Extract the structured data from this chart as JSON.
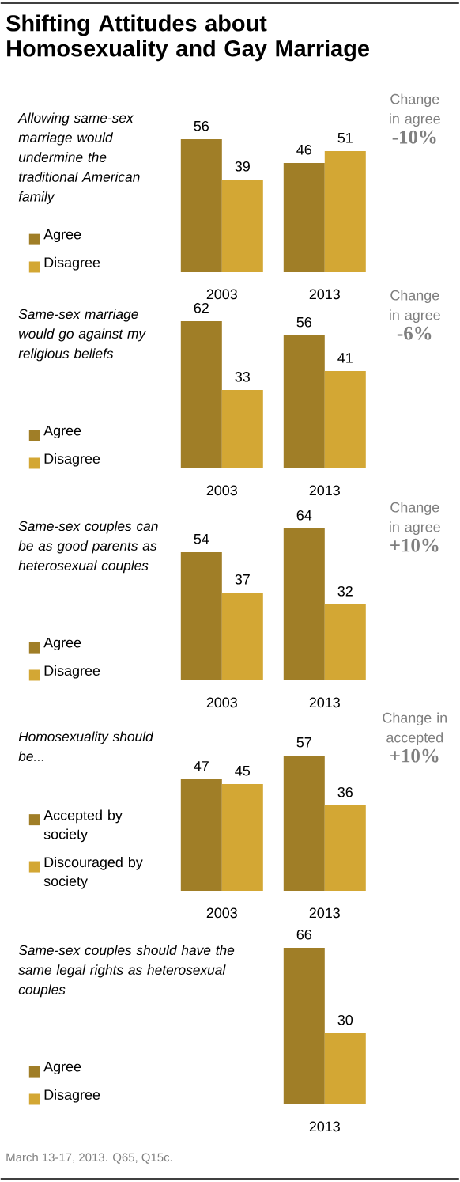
{
  "chart_data": [
    {
      "type": "bar",
      "title": "Shifting Attitudes about Homosexuality and Gay Marriage",
      "subtitle": "Allowing same-sex marriage would undermine the traditional American family",
      "categories": [
        "2003",
        "2013"
      ],
      "series": [
        {
          "name": "Agree",
          "color": "#a07e27",
          "values": [
            56,
            46
          ]
        },
        {
          "name": "Disagree",
          "color": "#d3a734",
          "values": [
            39,
            51
          ]
        }
      ],
      "data_labels": true,
      "legend": "left",
      "annotations": [
        "Change in agree",
        "-10%"
      ]
    },
    {
      "type": "bar",
      "subtitle": "Same-sex marriage would go against my religious beliefs",
      "categories": [
        "2003",
        "2013"
      ],
      "series": [
        {
          "name": "Agree",
          "color": "#a07e27",
          "values": [
            62,
            56
          ]
        },
        {
          "name": "Disagree",
          "color": "#d3a734",
          "values": [
            33,
            41
          ]
        }
      ],
      "data_labels": true,
      "legend": "left",
      "annotations": [
        "Change in agree",
        "-6%"
      ]
    },
    {
      "type": "bar",
      "subtitle": "Same-sex couples can be as good parents as heterosexual couples",
      "categories": [
        "2003",
        "2013"
      ],
      "series": [
        {
          "name": "Agree",
          "color": "#a07e27",
          "values": [
            54,
            64
          ]
        },
        {
          "name": "Disagree",
          "color": "#d3a734",
          "values": [
            37,
            32
          ]
        }
      ],
      "data_labels": true,
      "legend": "left",
      "annotations": [
        "Change in agree",
        "+10%"
      ]
    },
    {
      "type": "bar",
      "subtitle": "Homosexuality should be...",
      "categories": [
        "2003",
        "2013"
      ],
      "series": [
        {
          "name": "Accepted by society",
          "color": "#a07e27",
          "values": [
            47,
            57
          ]
        },
        {
          "name": "Discouraged by society",
          "color": "#d3a734",
          "values": [
            45,
            36
          ]
        }
      ],
      "data_labels": true,
      "legend": "left",
      "annotations": [
        "Change in accepted",
        "+10%"
      ]
    },
    {
      "type": "bar",
      "subtitle": "Same-sex couples should have the same legal rights as heterosexual couples",
      "categories": [
        "2013"
      ],
      "series": [
        {
          "name": "Agree",
          "color": "#a07e27",
          "values": [
            66
          ]
        },
        {
          "name": "Disagree",
          "color": "#d3a734",
          "values": [
            30
          ]
        }
      ],
      "data_labels": true,
      "legend": "left",
      "annotations": [
        "March 13-17, 2013. Q65, Q15c."
      ]
    }
  ]
}
